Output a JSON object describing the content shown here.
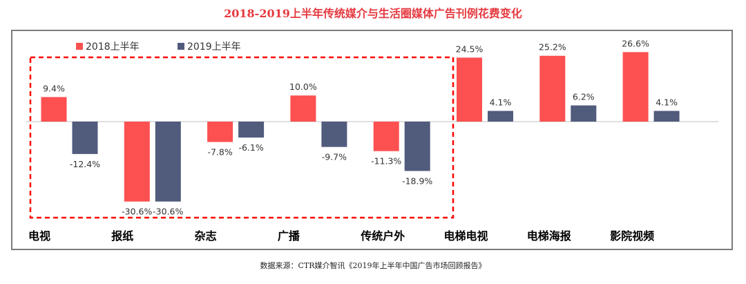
{
  "chart_data": {
    "type": "bar",
    "title": "2018-2019上半年传统媒介与生活圈媒体广告刊例花费变化",
    "categories": [
      "电视",
      "报纸",
      "杂志",
      "广播",
      "传统户外",
      "电梯电视",
      "电梯海报",
      "影院视频"
    ],
    "series": [
      {
        "name": "2018上半年",
        "values": [
          9.4,
          -30.6,
          -7.8,
          10.0,
          -11.3,
          24.5,
          25.2,
          26.6
        ],
        "labels": [
          "9.4%",
          "-30.6%",
          "-7.8%",
          "10.0%",
          "-11.3%",
          "24.5%",
          "25.2%",
          "26.6%"
        ]
      },
      {
        "name": "2019上半年",
        "values": [
          -12.4,
          -30.6,
          -6.1,
          -9.7,
          -18.9,
          4.1,
          6.2,
          4.1
        ],
        "labels": [
          "-12.4%",
          "-30.6%",
          "-6.1%",
          "-9.7%",
          "-18.9%",
          "4.1%",
          "6.2%",
          "4.1%"
        ]
      }
    ],
    "unit": "%",
    "ylim": [
      -32,
      28
    ],
    "grid": false,
    "legend": "top-left",
    "highlight": {
      "style": "dashed-box",
      "categories": [
        "电视",
        "报纸",
        "杂志",
        "广播",
        "传统户外"
      ]
    }
  },
  "colors": {
    "series_2018": "#fd5050",
    "series_2019": "#515b7c",
    "title": "#e5393f",
    "highlight": "#ff0000",
    "frame": "#7b7b7b"
  },
  "source_note": "数据来源：CTR媒介智讯《2019年上半年中国广告市场回顾报告》"
}
